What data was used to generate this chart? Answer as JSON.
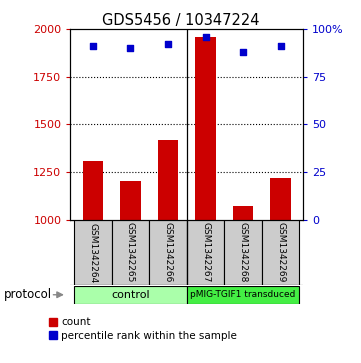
{
  "title": "GDS5456 / 10347224",
  "samples": [
    "GSM1342264",
    "GSM1342265",
    "GSM1342266",
    "GSM1342267",
    "GSM1342268",
    "GSM1342269"
  ],
  "counts": [
    1310,
    1205,
    1420,
    1960,
    1070,
    1220
  ],
  "percentile_ranks": [
    91,
    90,
    92,
    96,
    88,
    91
  ],
  "ylim_left": [
    1000,
    2000
  ],
  "ylim_right": [
    0,
    100
  ],
  "yticks_left": [
    1000,
    1250,
    1500,
    1750,
    2000
  ],
  "yticks_right": [
    0,
    25,
    50,
    75,
    100
  ],
  "ytick_labels_left": [
    "1000",
    "1250",
    "1500",
    "1750",
    "2000"
  ],
  "ytick_labels_right": [
    "0",
    "25",
    "50",
    "75",
    "100%"
  ],
  "bar_color": "#cc0000",
  "scatter_color": "#0000cc",
  "bar_width": 0.55,
  "gridlines": [
    1250,
    1500,
    1750
  ],
  "grid_color": "#000000",
  "sample_box_color": "#cccccc",
  "sample_box_edge": "#000000",
  "group_control_color": "#aaffaa",
  "group_pmig_color": "#44ee44",
  "protocol_label": "protocol",
  "control_label": "control",
  "pmig_label": "pMIG-TGIF1 transduced",
  "legend_count_label": "count",
  "legend_pct_label": "percentile rank within the sample"
}
